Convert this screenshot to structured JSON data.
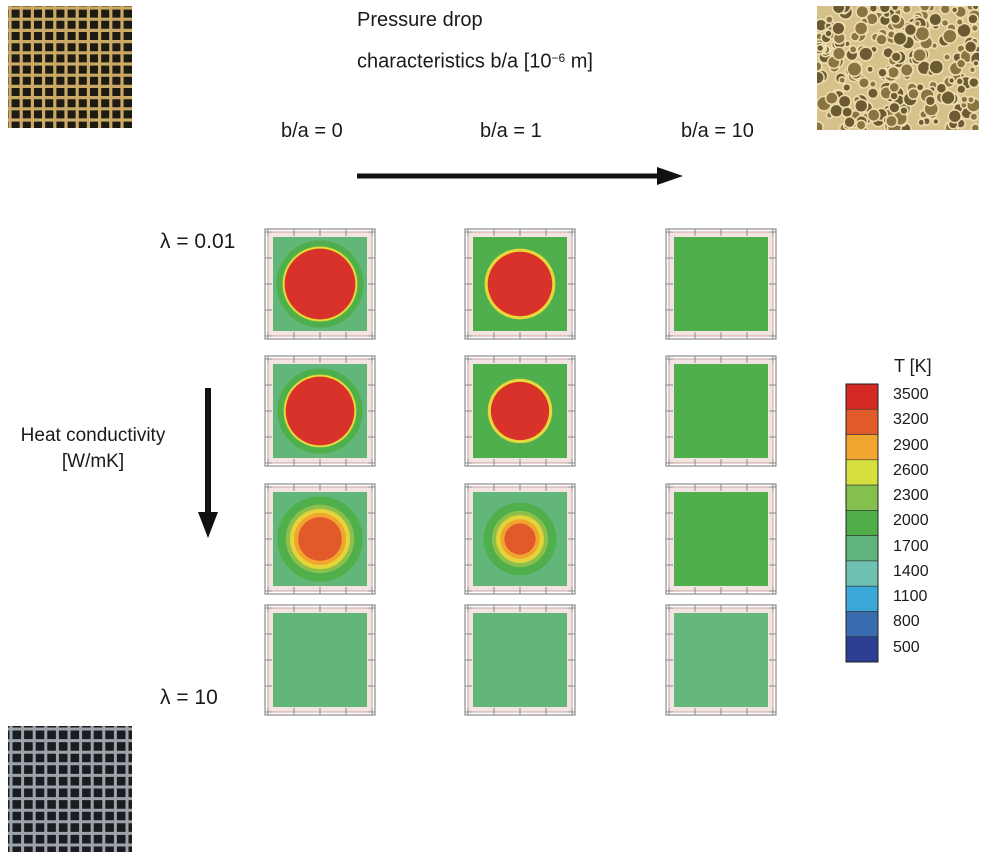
{
  "title": {
    "line1": "Pressure drop",
    "line2_prefix": "characteristics b/a [10",
    "line2_exponent": "−6",
    "line2_suffix": " m]"
  },
  "columns": [
    "b/a = 0",
    "b/a = 1",
    "b/a = 10"
  ],
  "rows": {
    "top": "λ = 0.01",
    "bottom": "λ = 10"
  },
  "vertical_axis": {
    "line1": "Heat conductivity",
    "line2": "[W/mK]"
  },
  "legend": {
    "title": "T [K]",
    "values": [
      "3500",
      "3200",
      "2900",
      "2600",
      "2300",
      "2000",
      "1700",
      "1400",
      "1100",
      "800",
      "500"
    ],
    "colors": [
      "#d42a24",
      "#e15a2a",
      "#f0a530",
      "#d6df3e",
      "#84c04e",
      "#4fae4a",
      "#5fb57c",
      "#6fc2b2",
      "#3ba9d8",
      "#3a6cb0",
      "#2c3f93"
    ]
  },
  "cells": [
    {
      "bg": "#62b67a",
      "rings": [
        [
          "#4fb04b",
          0.42
        ],
        [
          "#e7d83a",
          0.36
        ],
        [
          "#d8322a",
          0.34
        ]
      ]
    },
    {
      "bg": "#4faf4c",
      "rings": [
        [
          "#e6d83a",
          0.34
        ],
        [
          "#d8322a",
          0.31
        ]
      ]
    },
    {
      "bg": "#4faf4c",
      "rings": []
    },
    {
      "bg": "#62b67a",
      "rings": [
        [
          "#4fb04b",
          0.41
        ],
        [
          "#e7d83a",
          0.35
        ],
        [
          "#d8322a",
          0.33
        ]
      ]
    },
    {
      "bg": "#4faf4c",
      "rings": [
        [
          "#e6d83a",
          0.31
        ],
        [
          "#d8322a",
          0.28
        ]
      ]
    },
    {
      "bg": "#4faf4c",
      "rings": []
    },
    {
      "bg": "#62b67a",
      "rings": [
        [
          "#4fb04b",
          0.41
        ],
        [
          "#8cc04a",
          0.33
        ],
        [
          "#e4d43a",
          0.29
        ],
        [
          "#f2a52e",
          0.25
        ],
        [
          "#e15a2a",
          0.21
        ]
      ]
    },
    {
      "bg": "#62b67a",
      "rings": [
        [
          "#4fb04b",
          0.35
        ],
        [
          "#8cc04a",
          0.27
        ],
        [
          "#e4d43a",
          0.23
        ],
        [
          "#f2a52e",
          0.19
        ],
        [
          "#e15a2a",
          0.15
        ]
      ]
    },
    {
      "bg": "#4faf4c",
      "rings": []
    },
    {
      "bg": "#62b67a",
      "rings": []
    },
    {
      "bg": "#62b67a",
      "rings": []
    },
    {
      "bg": "#64b87c",
      "rings": []
    }
  ]
}
